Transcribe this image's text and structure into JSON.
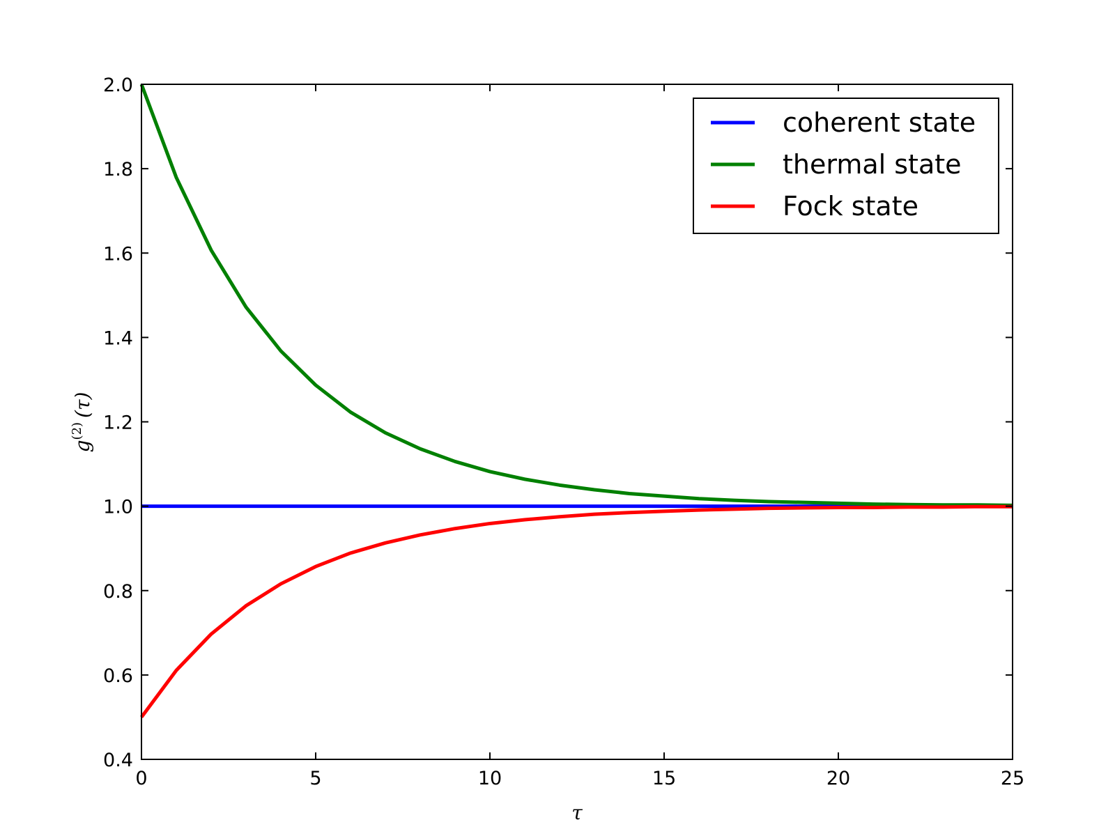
{
  "chart_data": {
    "type": "line",
    "title": "",
    "xlabel": "τ",
    "ylabel": {
      "base": "g",
      "superscript": "(2)",
      "argument": "(τ)"
    },
    "xlim": [
      0,
      25
    ],
    "ylim": [
      0.4,
      2.0
    ],
    "x_ticks": [
      0,
      5,
      10,
      15,
      20,
      25
    ],
    "x_tick_labels": [
      "0",
      "5",
      "10",
      "15",
      "20",
      "25"
    ],
    "y_ticks": [
      0.4,
      0.6,
      0.8,
      1.0,
      1.2,
      1.4,
      1.6,
      1.8,
      2.0
    ],
    "y_tick_labels": [
      "0.4",
      "0.6",
      "0.8",
      "1.0",
      "1.2",
      "1.4",
      "1.6",
      "1.8",
      "2.0"
    ],
    "grid": false,
    "legend_position": "top-right",
    "x": [
      0,
      1,
      2,
      3,
      4,
      5,
      6,
      7,
      8,
      9,
      10,
      11,
      12,
      13,
      14,
      15,
      16,
      17,
      18,
      19,
      20,
      21,
      22,
      23,
      24,
      25
    ],
    "series": [
      {
        "name": "coherent state",
        "color": "#0000ff",
        "values": [
          1.0,
          1.0,
          1.0,
          1.0,
          1.0,
          1.0,
          1.0,
          1.0,
          1.0,
          1.0,
          1.0,
          1.0,
          1.0,
          1.0,
          1.0,
          1.0,
          1.0,
          1.0,
          1.0,
          1.0,
          1.0,
          1.0,
          1.0,
          1.0,
          1.0,
          1.0
        ]
      },
      {
        "name": "thermal state",
        "color": "#008000",
        "values": [
          2.0,
          1.779,
          1.607,
          1.472,
          1.368,
          1.287,
          1.223,
          1.174,
          1.136,
          1.106,
          1.082,
          1.064,
          1.05,
          1.039,
          1.03,
          1.024,
          1.018,
          1.014,
          1.011,
          1.009,
          1.007,
          1.005,
          1.004,
          1.003,
          1.003,
          1.002
        ]
      },
      {
        "name": "Fock state",
        "color": "#ff0000",
        "values": [
          0.5,
          0.611,
          0.697,
          0.764,
          0.816,
          0.857,
          0.889,
          0.913,
          0.932,
          0.947,
          0.959,
          0.968,
          0.975,
          0.981,
          0.985,
          0.988,
          0.991,
          0.993,
          0.995,
          0.996,
          0.997,
          0.997,
          0.998,
          0.998,
          0.999,
          0.999
        ]
      }
    ]
  }
}
